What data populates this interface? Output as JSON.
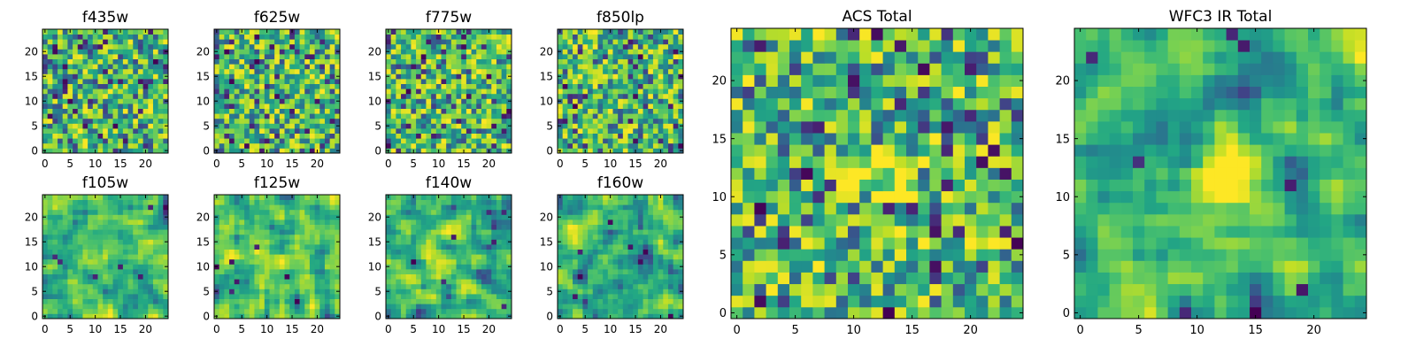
{
  "chart_data": [
    {
      "type": "heatmap",
      "title": "f435w",
      "xticks": [
        0,
        5,
        10,
        15,
        20
      ],
      "yticks": [
        0,
        5,
        10,
        15,
        20
      ],
      "xlim": [
        -0.5,
        24.5
      ],
      "ylim": [
        -0.5,
        24.5
      ],
      "grid": false,
      "colormap": "viridis",
      "pattern": "noise",
      "seed": 11
    },
    {
      "type": "heatmap",
      "title": "f625w",
      "xticks": [
        0,
        5,
        10,
        15,
        20
      ],
      "yticks": [
        0,
        5,
        10,
        15,
        20
      ],
      "xlim": [
        -0.5,
        24.5
      ],
      "ylim": [
        -0.5,
        24.5
      ],
      "grid": false,
      "colormap": "viridis",
      "pattern": "noise",
      "seed": 23
    },
    {
      "type": "heatmap",
      "title": "f775w",
      "xticks": [
        0,
        5,
        10,
        15,
        20
      ],
      "yticks": [
        0,
        5,
        10,
        15,
        20
      ],
      "xlim": [
        -0.5,
        24.5
      ],
      "ylim": [
        -0.5,
        24.5
      ],
      "grid": false,
      "colormap": "viridis",
      "pattern": "noise",
      "seed": 37
    },
    {
      "type": "heatmap",
      "title": "f850lp",
      "xticks": [
        0,
        5,
        10,
        15,
        20
      ],
      "yticks": [
        0,
        5,
        10,
        15,
        20
      ],
      "xlim": [
        -0.5,
        24.5
      ],
      "ylim": [
        -0.5,
        24.5
      ],
      "grid": false,
      "colormap": "viridis",
      "pattern": "noise",
      "seed": 41
    },
    {
      "type": "heatmap",
      "title": "f105w",
      "xticks": [
        0,
        5,
        10,
        15,
        20
      ],
      "yticks": [
        0,
        5,
        10,
        15,
        20
      ],
      "xlim": [
        -0.5,
        24.5
      ],
      "ylim": [
        -0.5,
        24.5
      ],
      "grid": false,
      "colormap": "viridis",
      "pattern": "smooth",
      "seed": 53
    },
    {
      "type": "heatmap",
      "title": "f125w",
      "xticks": [
        0,
        5,
        10,
        15,
        20
      ],
      "yticks": [
        0,
        5,
        10,
        15,
        20
      ],
      "xlim": [
        -0.5,
        24.5
      ],
      "ylim": [
        -0.5,
        24.5
      ],
      "grid": false,
      "colormap": "viridis",
      "pattern": "smooth",
      "seed": 67
    },
    {
      "type": "heatmap",
      "title": "f140w",
      "xticks": [
        0,
        5,
        10,
        15,
        20
      ],
      "yticks": [
        0,
        5,
        10,
        15,
        20
      ],
      "xlim": [
        -0.5,
        24.5
      ],
      "ylim": [
        -0.5,
        24.5
      ],
      "grid": false,
      "colormap": "viridis",
      "pattern": "smooth",
      "seed": 71
    },
    {
      "type": "heatmap",
      "title": "f160w",
      "xticks": [
        0,
        5,
        10,
        15,
        20
      ],
      "yticks": [
        0,
        5,
        10,
        15,
        20
      ],
      "xlim": [
        -0.5,
        24.5
      ],
      "ylim": [
        -0.5,
        24.5
      ],
      "grid": false,
      "colormap": "viridis",
      "pattern": "smooth",
      "seed": 83
    },
    {
      "type": "heatmap",
      "title": "ACS Total",
      "xticks": [
        0,
        5,
        10,
        15,
        20
      ],
      "yticks": [
        0,
        5,
        10,
        15,
        20
      ],
      "xlim": [
        -0.5,
        24.5
      ],
      "ylim": [
        -0.5,
        24.5
      ],
      "grid": false,
      "colormap": "viridis",
      "pattern": "noise-center",
      "seed": 97
    },
    {
      "type": "heatmap",
      "title": "WFC3 IR Total",
      "xticks": [
        0,
        5,
        10,
        15,
        20
      ],
      "yticks": [
        0,
        5,
        10,
        15,
        20
      ],
      "xlim": [
        -0.5,
        24.5
      ],
      "ylim": [
        -0.5,
        24.5
      ],
      "grid": false,
      "colormap": "viridis",
      "pattern": "smooth-center",
      "seed": 101
    }
  ]
}
